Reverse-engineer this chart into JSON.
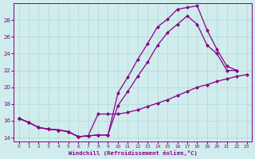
{
  "xlabel": "Windchill (Refroidissement éolien,°C)",
  "bg_color": "#d0ecec",
  "line_color": "#880088",
  "grid_color": "#b0d8d8",
  "xlim": [
    -0.5,
    23.5
  ],
  "ylim": [
    13.5,
    30.0
  ],
  "yticks": [
    14,
    16,
    18,
    20,
    22,
    24,
    26,
    28
  ],
  "xticks": [
    0,
    1,
    2,
    3,
    4,
    5,
    6,
    7,
    8,
    9,
    10,
    11,
    12,
    13,
    14,
    15,
    16,
    17,
    18,
    19,
    20,
    21,
    22,
    23
  ],
  "line1_x": [
    0,
    1,
    2,
    3,
    4,
    5,
    6,
    7,
    8,
    9,
    10,
    11,
    12,
    13,
    14,
    15,
    16,
    17,
    18,
    19,
    20,
    21,
    22
  ],
  "line1_y": [
    16.3,
    15.8,
    15.2,
    15.0,
    14.9,
    14.7,
    14.1,
    14.2,
    14.3,
    14.3,
    19.3,
    21.2,
    23.3,
    25.2,
    27.2,
    28.1,
    29.3,
    29.5,
    29.7,
    26.8,
    24.5,
    22.5,
    22.0
  ],
  "line2_x": [
    0,
    1,
    2,
    3,
    4,
    5,
    6,
    7,
    8,
    9,
    10,
    11,
    12,
    13,
    14,
    15,
    16,
    17,
    18,
    19,
    20,
    21,
    22
  ],
  "line2_y": [
    16.3,
    15.8,
    15.2,
    15.0,
    14.9,
    14.7,
    14.1,
    14.2,
    14.3,
    14.3,
    17.8,
    19.5,
    21.3,
    23.0,
    25.0,
    26.5,
    27.5,
    28.5,
    27.5,
    25.0,
    24.0,
    22.0,
    22.0
  ],
  "line3_x": [
    0,
    1,
    2,
    3,
    4,
    5,
    6,
    7,
    8,
    9,
    10,
    11,
    12,
    13,
    14,
    15,
    16,
    17,
    18,
    19,
    20,
    21,
    22,
    23
  ],
  "line3_y": [
    16.3,
    15.8,
    15.2,
    15.0,
    14.9,
    14.7,
    14.1,
    14.2,
    16.8,
    16.8,
    16.8,
    17.0,
    17.3,
    17.7,
    18.1,
    18.5,
    19.0,
    19.5,
    20.0,
    20.3,
    20.7,
    21.0,
    21.3,
    21.5
  ]
}
